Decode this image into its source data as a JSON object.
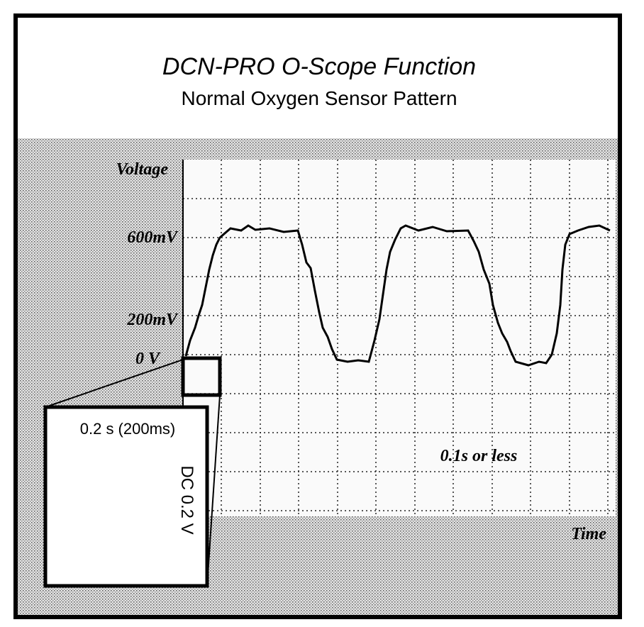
{
  "title": "DCN-PRO O-Scope Function",
  "subtitle": "Normal Oxygen Sensor Pattern",
  "axes": {
    "y_label": "Voltage",
    "x_label": "Time",
    "y_labels": [
      "600mV",
      "200mV",
      "0 V"
    ]
  },
  "zoom": {
    "time": "0.2 s (200ms)",
    "volts": "DC 0.2 V"
  },
  "annotation": "0.1s or less"
}
